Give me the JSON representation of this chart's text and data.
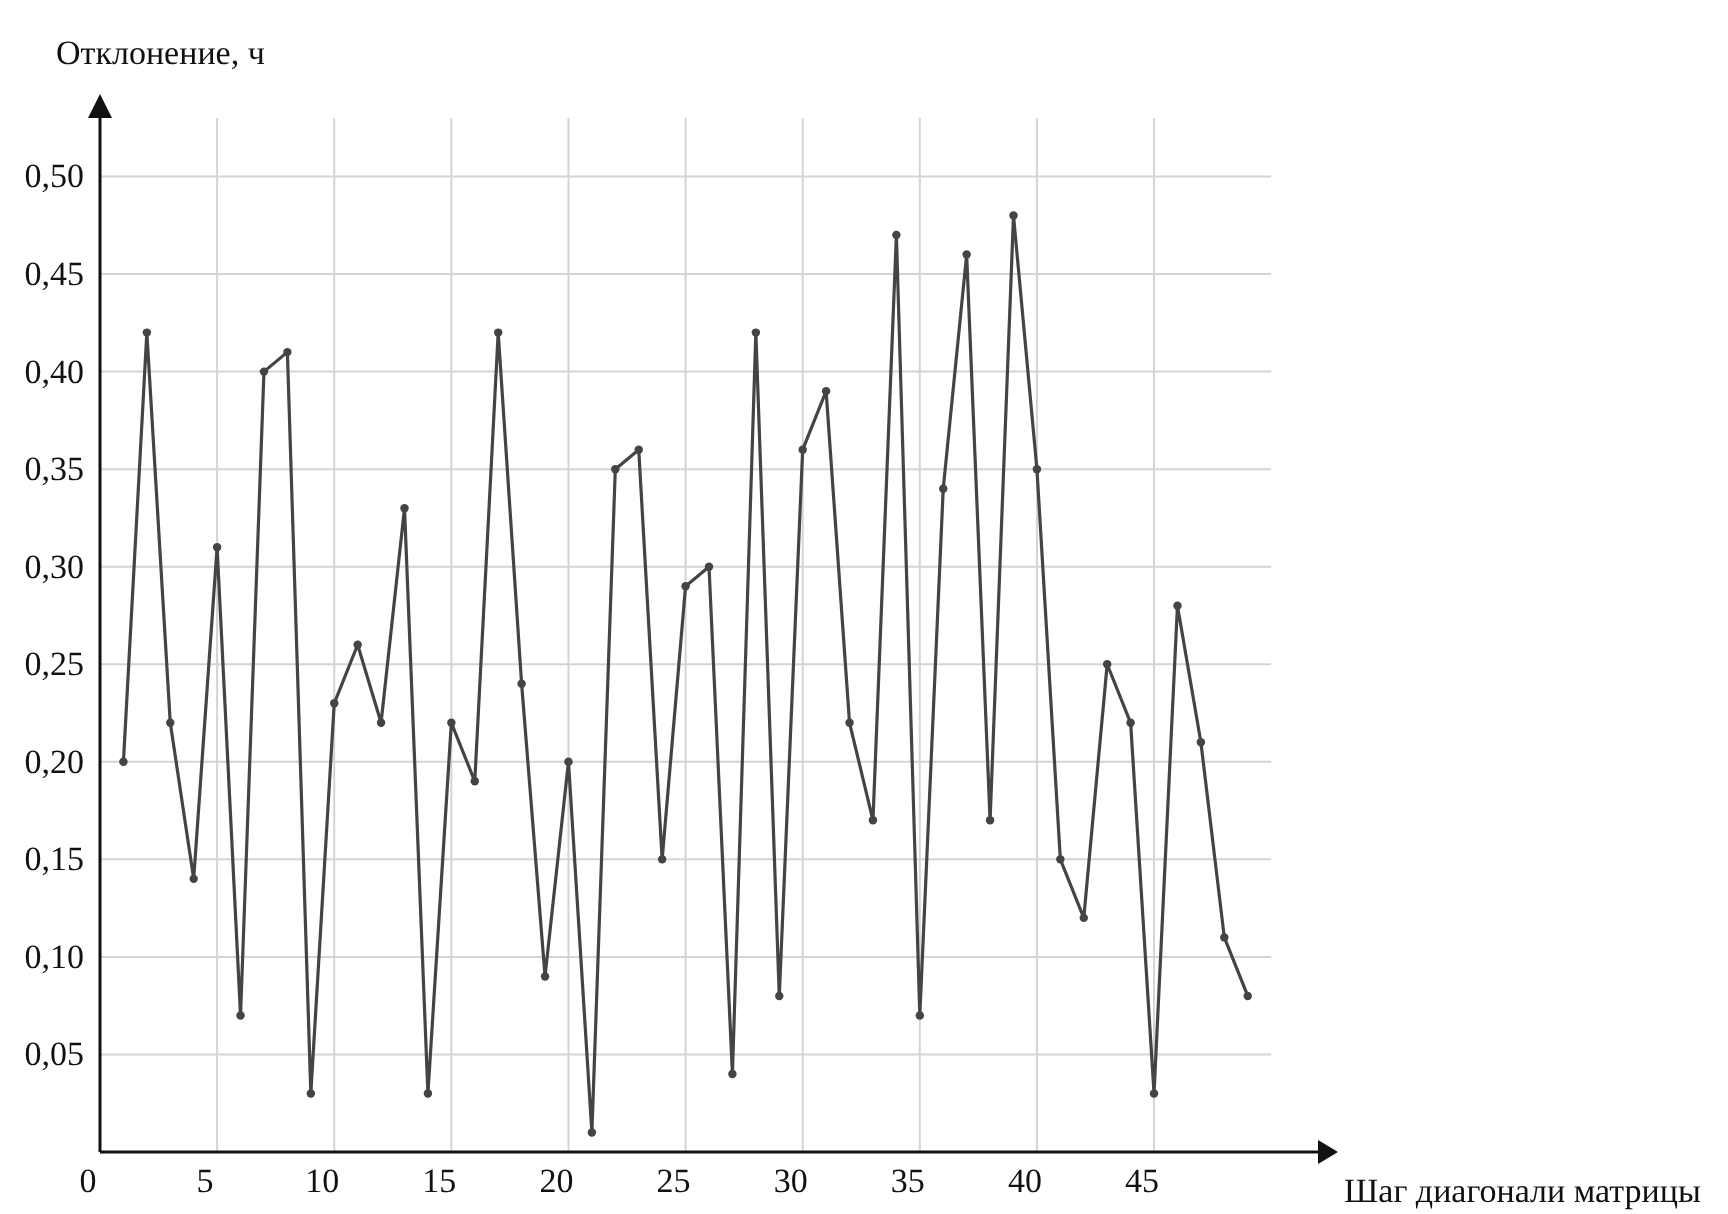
{
  "chart_data": {
    "type": "line",
    "xlabel": "Шаг диагонали матрицы",
    "ylabel": "Отклонение, ч",
    "x": [
      1,
      2,
      3,
      4,
      5,
      6,
      7,
      8,
      9,
      10,
      11,
      12,
      13,
      14,
      15,
      16,
      17,
      18,
      19,
      20,
      21,
      22,
      23,
      24,
      25,
      26,
      27,
      28,
      29,
      30,
      31,
      32,
      33,
      34,
      35,
      36,
      37,
      38,
      39,
      40,
      41,
      42,
      43,
      44,
      45,
      46,
      47,
      48,
      49
    ],
    "series": [
      {
        "color": "#444444",
        "values": [
          0.2,
          0.42,
          0.22,
          0.14,
          0.31,
          0.07,
          0.4,
          0.41,
          0.03,
          0.23,
          0.26,
          0.22,
          0.33,
          0.03,
          0.22,
          0.19,
          0.42,
          0.24,
          0.09,
          0.2,
          0.01,
          0.35,
          0.36,
          0.15,
          0.29,
          0.3,
          0.04,
          0.42,
          0.08,
          0.36,
          0.39,
          0.22,
          0.17,
          0.47,
          0.07,
          0.34,
          0.46,
          0.17,
          0.48,
          0.35,
          0.15,
          0.12,
          0.25,
          0.22,
          0.03,
          0.28,
          0.21,
          0.11,
          0.08
        ]
      }
    ],
    "xlim": [
      0,
      52
    ],
    "ylim": [
      0,
      0.53
    ],
    "xticks": [
      0,
      5,
      10,
      15,
      20,
      25,
      30,
      35,
      40,
      45
    ],
    "yticks": [
      {
        "value": 0.05,
        "label": "0,05"
      },
      {
        "value": 0.1,
        "label": "0,10"
      },
      {
        "value": 0.15,
        "label": "0,15"
      },
      {
        "value": 0.2,
        "label": "0,20"
      },
      {
        "value": 0.25,
        "label": "0,25"
      },
      {
        "value": 0.3,
        "label": "0,30"
      },
      {
        "value": 0.35,
        "label": "0,35"
      },
      {
        "value": 0.4,
        "label": "0,40"
      },
      {
        "value": 0.45,
        "label": "0,45"
      },
      {
        "value": 0.5,
        "label": "0,50"
      }
    ],
    "grid": true,
    "marker": "circle",
    "line_style": "solid"
  }
}
